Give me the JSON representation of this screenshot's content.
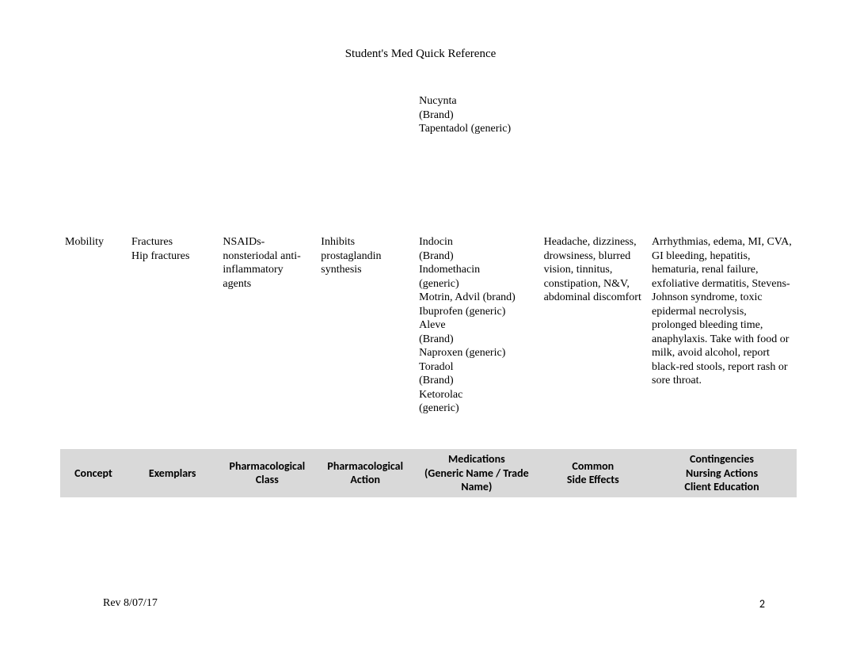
{
  "title": "Student's  Med Quick Reference",
  "table": {
    "row1": {
      "concept": "",
      "exemplars": "",
      "class": "",
      "action": "",
      "medications": "Nucynta\n  (Brand)\nTapentadol (generic)",
      "sideEffects": "",
      "contingencies": ""
    },
    "row2": {
      "concept": "Mobility",
      "exemplars": "Fractures\nHip fractures",
      "class": "NSAIDs- nonsteriodal anti-inflammatory agents",
      "action": "Inhibits prostaglandin synthesis",
      "medications": "Indocin\n(Brand)\n  Indomethacin\n  (generic)\nMotrin, Advil (brand)\n  Ibuprofen (generic)\nAleve\n(Brand)\nNaproxen (generic)\nToradol\n(Brand)\nKetorolac\n  (generic)",
      "sideEffects": "Headache, dizziness, drowsiness, blurred vision, tinnitus, constipation, N&V, abdominal discomfort",
      "contingencies": "  Arrhythmias, edema, MI, CVA, GI bleeding, hepatitis, hematuria, renal failure, exfoliative dermatitis, Stevens-Johnson syndrome, toxic epidermal necrolysis, prolonged bleeding time, anaphylaxis. Take with food or milk, avoid alcohol, report black-red stools, report rash or sore throat."
    },
    "headers": {
      "concept": "Concept",
      "exemplars": "Exemplars",
      "class": "Pharmacological Class",
      "action": "Pharmacological Action",
      "medications": "Medications\n(Generic Name / Trade Name)",
      "sideEffects": "Common\nSide Effects",
      "contingencies": "Contingencies\nNursing Actions\nClient Education"
    }
  },
  "footer": {
    "revision": "Rev 8/07/17",
    "pageNumber": "2"
  }
}
